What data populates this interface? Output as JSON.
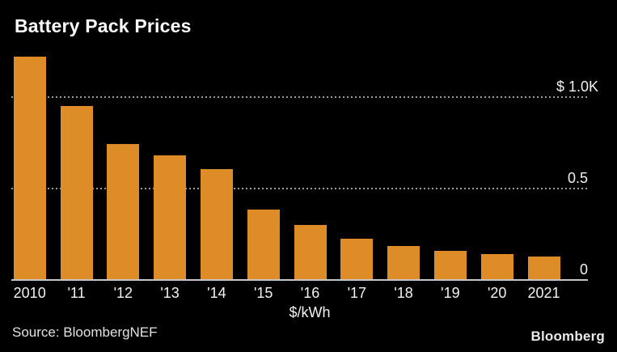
{
  "colors": {
    "background": "#000000",
    "bar_orange": "#DD8C28",
    "title_text": "#FFFFFF",
    "tick_text": "#F2F2F2",
    "gridline": "#9B9B9B",
    "axis_line": "#C6C6C6",
    "footer_text": "#E2E2E2"
  },
  "chart_data": {
    "type": "bar",
    "title": "Battery Pack Prices",
    "unit_label": "$/kWh",
    "categories": [
      "2010",
      "'11",
      "'12",
      "'13",
      "'14",
      "'15",
      "'16",
      "'17",
      "'18",
      "'19",
      "'20",
      "2021"
    ],
    "values": [
      1220,
      950,
      745,
      680,
      605,
      385,
      300,
      225,
      185,
      160,
      140,
      130
    ],
    "bar_color": "#DD8C28",
    "ylim": [
      0,
      1250
    ],
    "y_axis_ticks": [
      {
        "label": "$ 1.0K",
        "value": 1000
      },
      {
        "label": "0.5",
        "value": 500
      },
      {
        "label": "0",
        "value": 0
      }
    ],
    "grid": "horizontal dotted lines at 1000 and 500",
    "legend": "none",
    "background": "#000000"
  },
  "footer": {
    "source": "Source: BloombergNEF",
    "brand": "Bloomberg"
  }
}
